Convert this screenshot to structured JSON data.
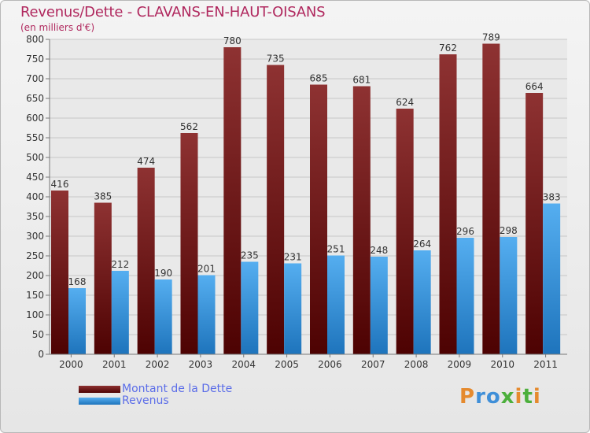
{
  "title": "Revenus/Dette - CLAVANS-EN-HAUT-OISANS",
  "subtitle": "(en milliers d'€)",
  "logo": {
    "letters": [
      {
        "char": "P",
        "color": "#e58a2e"
      },
      {
        "char": "r",
        "color": "#3f8fd8"
      },
      {
        "char": "o",
        "color": "#3f8fd8"
      },
      {
        "char": "x",
        "color": "#4caf3c"
      },
      {
        "char": "i",
        "color": "#e58a2e"
      },
      {
        "char": "t",
        "color": "#4caf3c"
      },
      {
        "char": "i",
        "color": "#e58a2e"
      }
    ]
  },
  "chart_data": {
    "type": "bar",
    "categories": [
      "2000",
      "2001",
      "2002",
      "2003",
      "2004",
      "2005",
      "2006",
      "2007",
      "2008",
      "2009",
      "2010",
      "2011"
    ],
    "series": [
      {
        "name": "Montant de la Dette",
        "color": "#7a1a1a",
        "values": [
          416,
          385,
          474,
          562,
          780,
          735,
          685,
          681,
          624,
          762,
          789,
          664
        ]
      },
      {
        "name": "Revenus",
        "color": "#3b96e0",
        "values": [
          168,
          212,
          190,
          201,
          235,
          231,
          251,
          248,
          264,
          296,
          298,
          383
        ]
      }
    ],
    "ylim": [
      0,
      800
    ],
    "yticks": [
      0,
      50,
      100,
      150,
      200,
      250,
      300,
      350,
      400,
      450,
      500,
      550,
      600,
      650,
      700,
      750,
      800
    ],
    "grid": true,
    "legend_position": "bottom-left"
  }
}
